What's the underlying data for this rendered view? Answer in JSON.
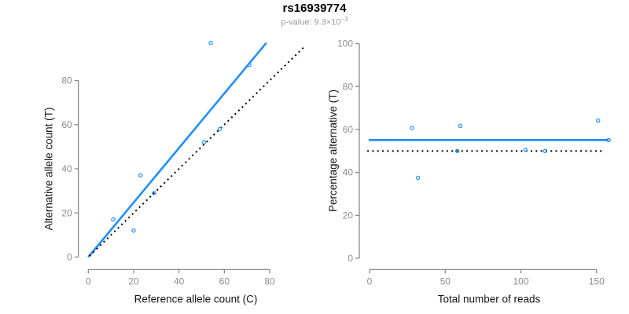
{
  "title": "rs16939774",
  "subtitle": {
    "prefix": "p-value: 9.3×10",
    "exponent": "−3"
  },
  "colors": {
    "accent_blue": "#1E90FF",
    "reference_black": "#000000",
    "axis_line": "#808080",
    "tick_label": "#8c8c8c",
    "axis_title": "#141414",
    "subtitle_gray": "#9c9c9c"
  },
  "chart_data": [
    {
      "type": "scatter",
      "panel": "allele-counts",
      "xlabel": "Reference allele count (C)",
      "ylabel": "Alternative allele count (T)",
      "xticks": [
        0,
        20,
        40,
        60,
        80
      ],
      "yticks": [
        0,
        20,
        40,
        60,
        80
      ],
      "xlim": [
        0,
        95
      ],
      "ylim": [
        0,
        100
      ],
      "grid": false,
      "point_color": "#1E90FF",
      "points": [
        [
          11,
          17
        ],
        [
          20,
          12
        ],
        [
          23,
          37
        ],
        [
          29,
          29
        ],
        [
          51,
          52
        ],
        [
          54,
          97
        ],
        [
          58,
          58
        ],
        [
          71,
          87
        ]
      ],
      "lines": [
        {
          "name": "regression-fit-line",
          "style": "solid",
          "color": "#1E90FF",
          "width": 2.6,
          "x1": 0,
          "y1": 0,
          "x2": 78.5,
          "y2": 97
        },
        {
          "name": "identity-reference-line",
          "style": "dotted",
          "color": "#000000",
          "width": 2,
          "x1": 0.5,
          "y1": 0.5,
          "x2": 95.5,
          "y2": 95.5
        }
      ]
    },
    {
      "type": "scatter",
      "panel": "percentage-vs-coverage",
      "xlabel": "Total number of reads",
      "ylabel": "Percentage alternative (T)",
      "xticks": [
        0,
        50,
        100,
        150
      ],
      "yticks": [
        0,
        20,
        40,
        60,
        80,
        100
      ],
      "xlim": [
        0,
        158
      ],
      "ylim": [
        0,
        100
      ],
      "grid": false,
      "point_color": "#1E90FF",
      "points": [
        [
          28,
          60.7
        ],
        [
          32,
          37.5
        ],
        [
          58,
          50
        ],
        [
          60,
          61.7
        ],
        [
          103,
          50.5
        ],
        [
          116,
          50
        ],
        [
          151,
          64.2
        ],
        [
          158,
          55.1
        ]
      ],
      "lines": [
        {
          "name": "weighted-mean-fit-line",
          "style": "solid",
          "color": "#1E90FF",
          "width": 2.8,
          "x1": -0.5,
          "y1": 55.1,
          "x2": 158,
          "y2": 55.1
        },
        {
          "name": "fifty-percent-reference-line",
          "style": "dotted",
          "color": "#000000",
          "width": 2,
          "x1": -1.5,
          "y1": 50,
          "x2": 154,
          "y2": 50
        }
      ]
    }
  ]
}
